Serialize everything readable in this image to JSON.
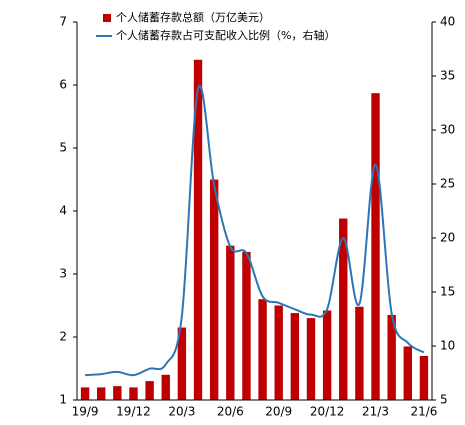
{
  "chart_data": {
    "type": "bar_line",
    "categories": [
      "19/9",
      null,
      null,
      "19/12",
      null,
      null,
      "20/3",
      null,
      null,
      "20/6",
      null,
      null,
      "20/9",
      null,
      null,
      "20/12",
      null,
      null,
      "21/3",
      null,
      null,
      "21/6"
    ],
    "series": [
      {
        "name": "个人储蓄存款总额（万亿美元）",
        "color": "#c00000",
        "type": "bar",
        "values": [
          1.2,
          1.2,
          1.22,
          1.2,
          1.3,
          1.4,
          2.15,
          6.4,
          4.5,
          3.45,
          3.35,
          2.6,
          2.5,
          2.38,
          2.3,
          2.42,
          3.88,
          2.48,
          5.87,
          2.35,
          1.85,
          1.7
        ]
      },
      {
        "name": "个人储蓄存款占可支配收入比例（%，右轴）",
        "color": "#2e75b6",
        "type": "line",
        "axis": "y2",
        "values": [
          7.3,
          7.4,
          7.6,
          7.3,
          7.9,
          8.3,
          12.8,
          33.8,
          24.9,
          19.2,
          18.6,
          14.6,
          14.0,
          13.4,
          12.9,
          13.4,
          20.0,
          13.9,
          26.8,
          13.0,
          10.3,
          9.4
        ]
      }
    ],
    "ylim": [
      1,
      7
    ],
    "yticks": [
      1,
      2,
      3,
      4,
      5,
      6,
      7
    ],
    "y2lim": [
      5,
      40
    ],
    "y2ticks": [
      5,
      10,
      15,
      20,
      25,
      30,
      35,
      40
    ]
  }
}
